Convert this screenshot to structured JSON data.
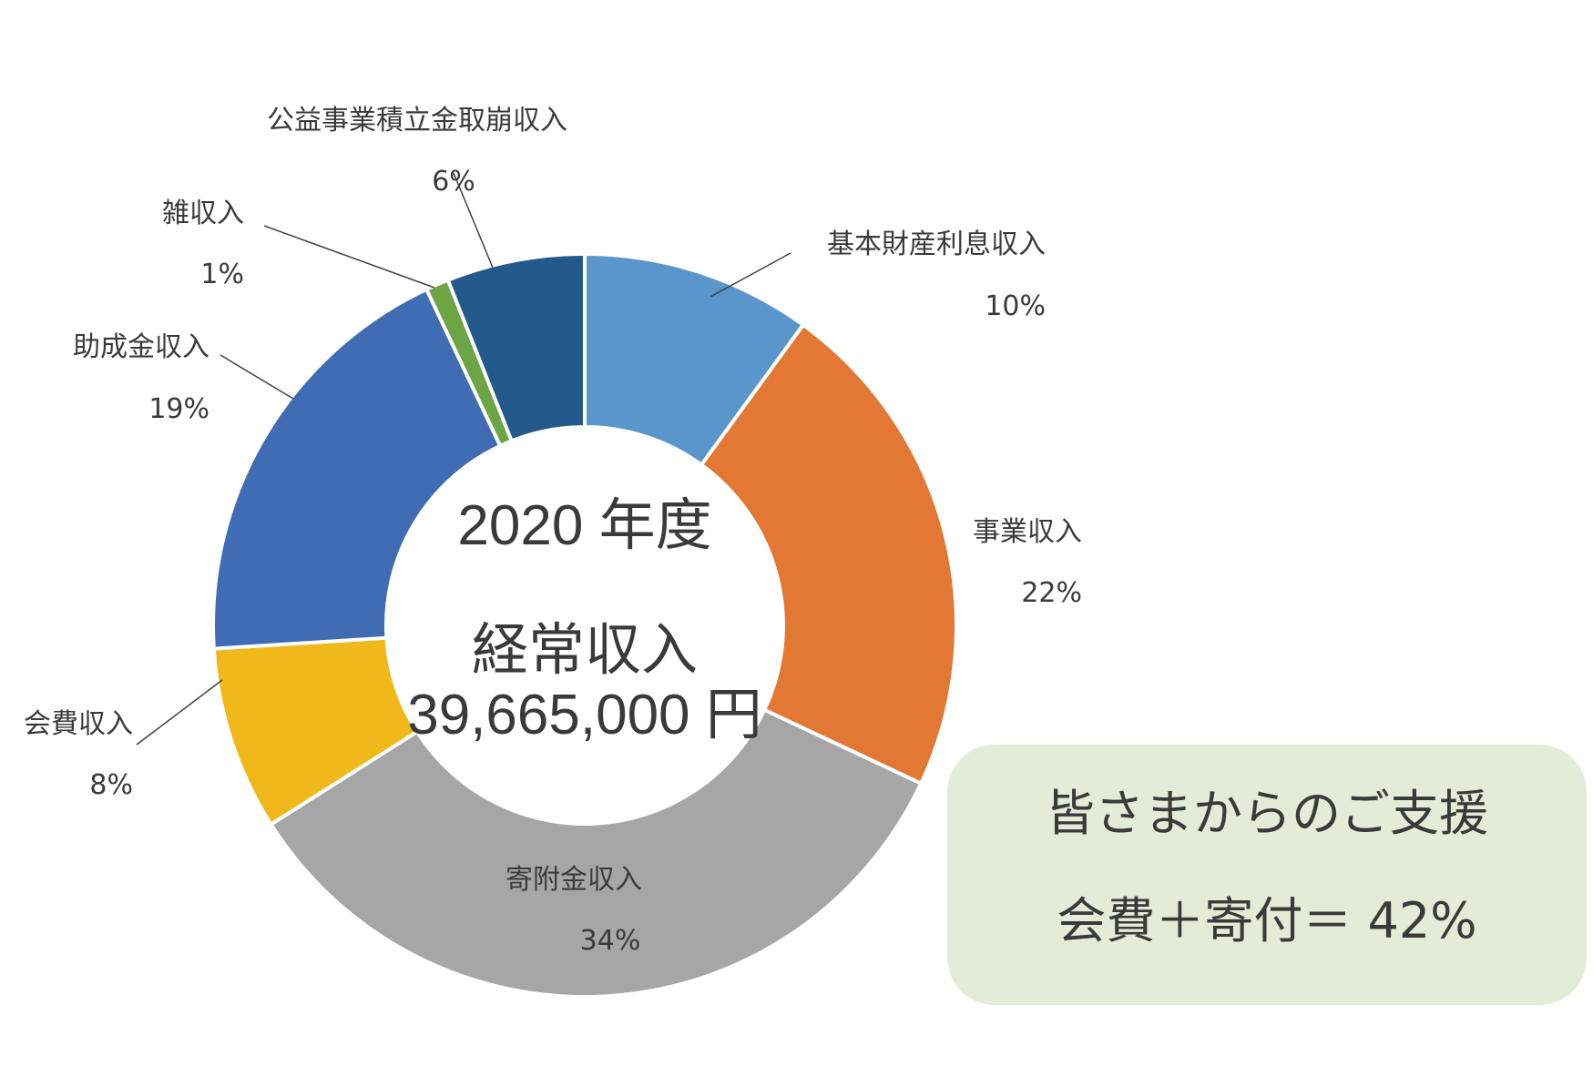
{
  "chart_data": {
    "type": "pie",
    "variant": "donut",
    "categories": [
      "基本財産利息収入",
      "事業収入",
      "寄附金収入",
      "会費収入",
      "助成金収入",
      "雑収入",
      "公益事業積立金取崩収入"
    ],
    "values": [
      10,
      22,
      34,
      8,
      19,
      1,
      6
    ],
    "value_labels": [
      "10%",
      "22%",
      "34%",
      "8%",
      "19%",
      "1%",
      "6%"
    ],
    "colors": [
      "#5a95cb",
      "#e27834",
      "#a6a6a6",
      "#f1b81c",
      "#3f6cb2",
      "#6ca544",
      "#245a8b"
    ],
    "center": {
      "line1": "2020 年度",
      "line2": "経常収入",
      "line3": "39,665,000 円"
    }
  },
  "callout": {
    "line1": "皆さまからのご支援",
    "line2": "会費＋寄付＝ 42%",
    "bg_color": "#e2ecd6"
  }
}
